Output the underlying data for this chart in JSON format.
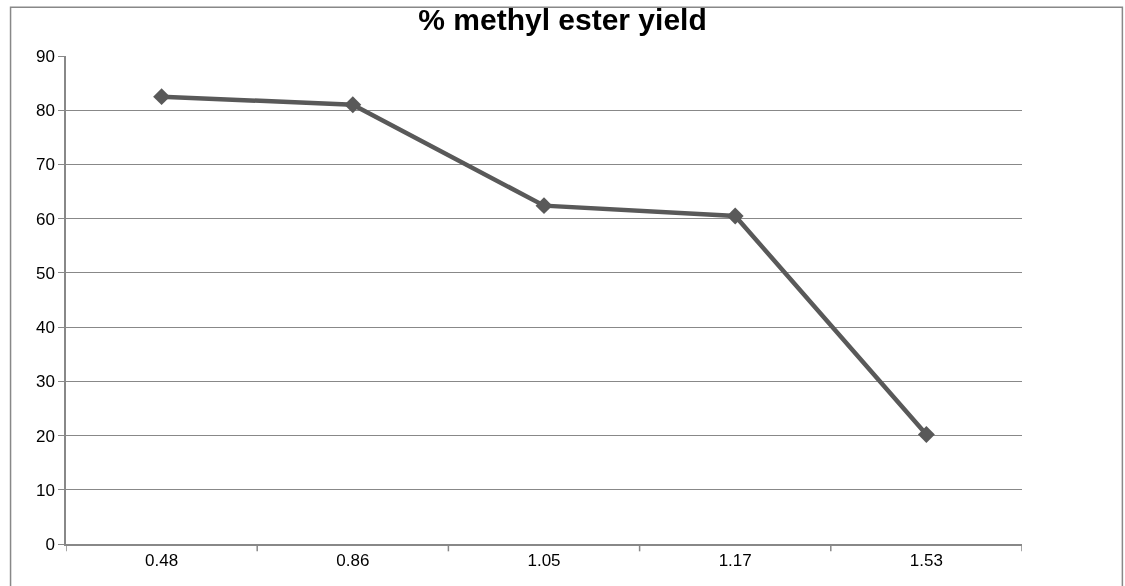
{
  "chart_data": {
    "type": "line",
    "title": "% methyl ester yield",
    "categories": [
      "0.48",
      "0.86",
      "1.05",
      "1.17",
      "1.53"
    ],
    "series": [
      {
        "color": "#595959",
        "values": [
          82.5,
          81.0,
          62.4,
          60.5,
          20.2
        ]
      }
    ],
    "ylim": [
      0,
      90
    ],
    "yticks": [
      0,
      10,
      20,
      30,
      40,
      50,
      60,
      70,
      80,
      90
    ],
    "grid": "y",
    "marker": "diamond",
    "line_style": "solid"
  }
}
